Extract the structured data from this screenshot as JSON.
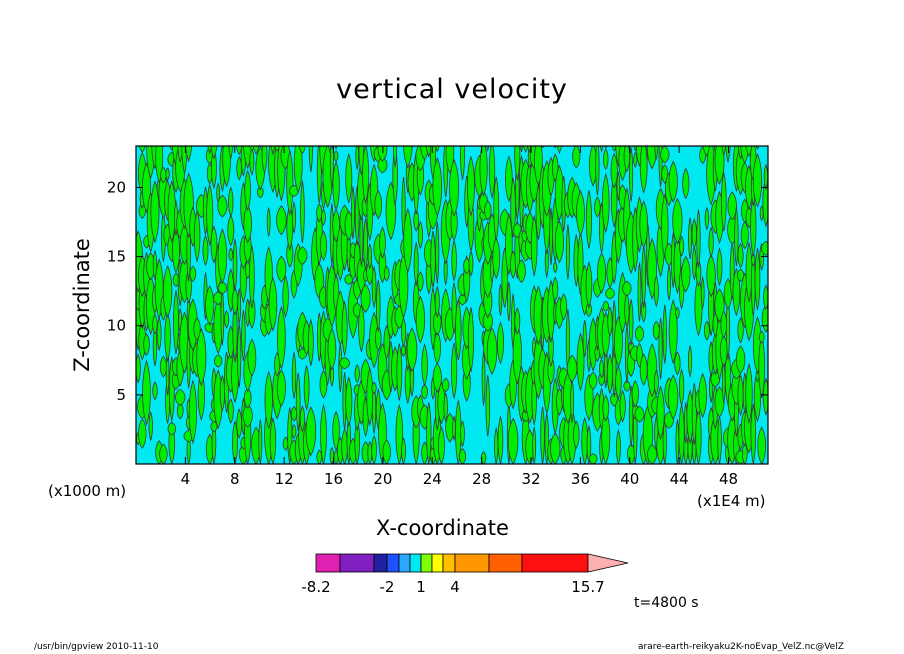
{
  "chart_data": {
    "type": "heatmap",
    "title": "vertical velocity",
    "xlabel": "X-coordinate",
    "ylabel": "Z-coordinate",
    "x_unit_left": "(x1000 m)",
    "x_unit_right": "(x1E4 m)",
    "x_ticks": [
      "4",
      "8",
      "12",
      "16",
      "20",
      "24",
      "28",
      "32",
      "36",
      "40",
      "44",
      "48"
    ],
    "y_ticks": [
      "5",
      "10",
      "15",
      "20"
    ],
    "xlim": [
      0,
      51.2
    ],
    "ylim": [
      0,
      23
    ],
    "colorbar": {
      "labels": [
        "-8.2",
        "-2",
        "1",
        "4",
        "15.7"
      ],
      "colors": [
        "#e020b0",
        "#8020c0",
        "#2020a0",
        "#2050ff",
        "#2aa8ff",
        "#00e8f0",
        "#80ff00",
        "#ffff00",
        "#ffc000",
        "#ff9800",
        "#ff6000",
        "#ff1010",
        "#ff8080",
        "#ffb0b0"
      ]
    },
    "field_colors": {
      "negative": "#00e8f0",
      "positive": "#00ee00",
      "contour": "#3a3a3a"
    },
    "time_label": "t=4800 s"
  },
  "footer": {
    "left": "/usr/bin/gpview   2010-11-10",
    "right": "arare-earth-reikyaku2K-noEvap_VelZ.nc@VelZ"
  }
}
